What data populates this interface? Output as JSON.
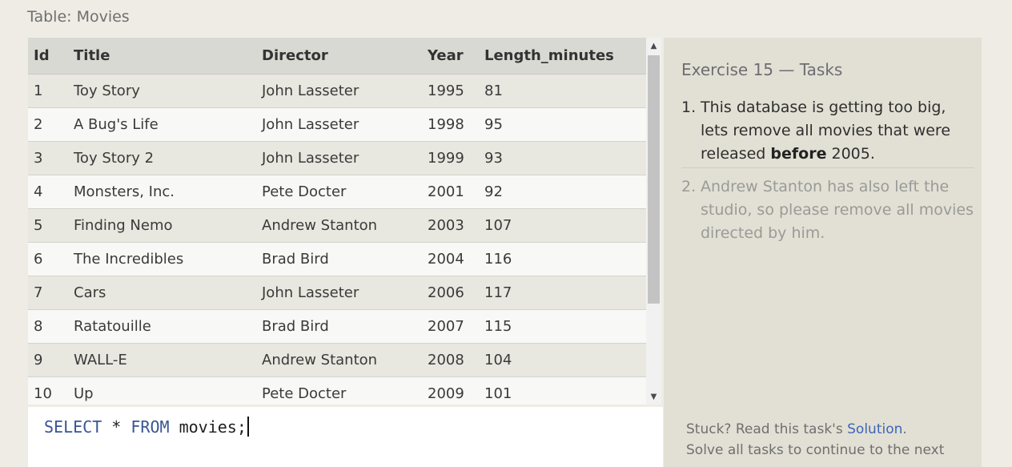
{
  "table_title": "Table: Movies",
  "columns": [
    "Id",
    "Title",
    "Director",
    "Year",
    "Length_minutes"
  ],
  "rows": [
    [
      "1",
      "Toy Story",
      "John Lasseter",
      "1995",
      "81"
    ],
    [
      "2",
      "A Bug's Life",
      "John Lasseter",
      "1998",
      "95"
    ],
    [
      "3",
      "Toy Story 2",
      "John Lasseter",
      "1999",
      "93"
    ],
    [
      "4",
      "Monsters, Inc.",
      "Pete Docter",
      "2001",
      "92"
    ],
    [
      "5",
      "Finding Nemo",
      "Andrew Stanton",
      "2003",
      "107"
    ],
    [
      "6",
      "The Incredibles",
      "Brad Bird",
      "2004",
      "116"
    ],
    [
      "7",
      "Cars",
      "John Lasseter",
      "2006",
      "117"
    ],
    [
      "8",
      "Ratatouille",
      "Brad Bird",
      "2007",
      "115"
    ],
    [
      "9",
      "WALL-E",
      "Andrew Stanton",
      "2008",
      "104"
    ],
    [
      "10",
      "Up",
      "Pete Docter",
      "2009",
      "101"
    ]
  ],
  "editor": {
    "kw_select": "SELECT",
    "star": " * ",
    "kw_from": "FROM",
    "rest": " movies;"
  },
  "panel": {
    "title": "Exercise 15 — Tasks",
    "tasks": [
      {
        "num": "1.",
        "before": "This database is getting too big, lets remove all movies that were released ",
        "bold": "before",
        "after": " 2005."
      },
      {
        "num": "2.",
        "text": "Andrew Stanton has also left the studio, so please remove all movies directed by him."
      }
    ],
    "footer": {
      "stuck": "Stuck? Read this task's ",
      "solution_link": "Solution",
      "period": ".",
      "line2": "Solve all tasks to continue to the next"
    }
  },
  "colors": {
    "keyword": "#395594",
    "link": "#3e65b8",
    "panel_bg": "#e2e0d4"
  }
}
